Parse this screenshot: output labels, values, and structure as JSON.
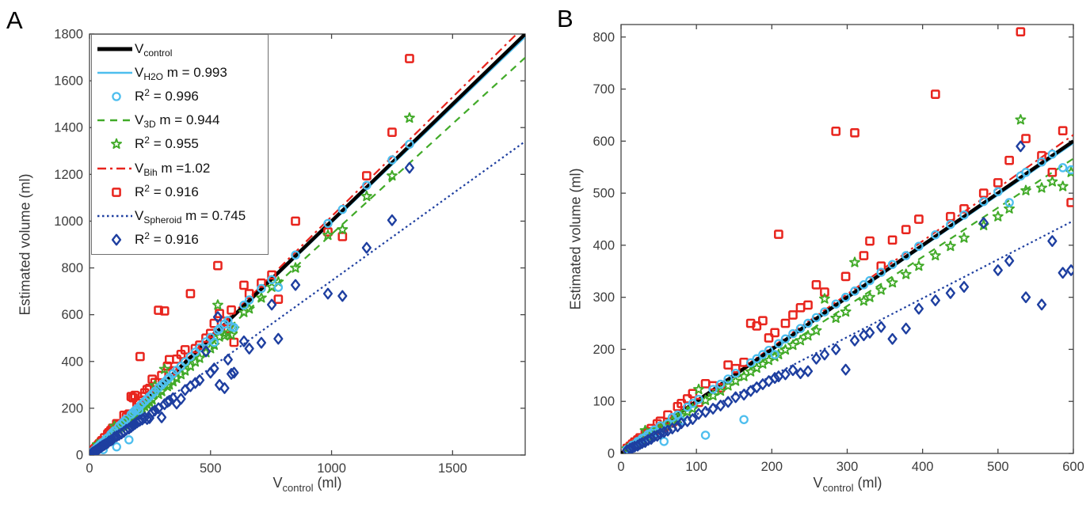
{
  "figure": {
    "panel_a_label": "A",
    "panel_b_label": "B",
    "x_axis_label": {
      "main": "V",
      "sub": "control",
      "rest": " (ml)"
    },
    "y_axis_label": "Estimated volume (ml)"
  },
  "colors": {
    "control": "#000000",
    "h2o": "#4DBEEE",
    "v3d": "#41AA28",
    "bih": "#E8241D",
    "spheroid": "#1E3FA0",
    "axis": "#454545",
    "tick_text": "#3d3d3d",
    "background": "#ffffff"
  },
  "legend": {
    "entries": [
      {
        "series": "control",
        "swatch": "line",
        "main": "V",
        "sub": "control",
        "sup": "",
        "rest": ""
      },
      {
        "series": "h2o",
        "swatch": "line",
        "main": "V",
        "sub": "H2O",
        "sup": "",
        "rest": " m = 0.993"
      },
      {
        "series": "h2o",
        "swatch": "marker",
        "main": "R",
        "sub": "",
        "sup": "2",
        "rest": " = 0.996"
      },
      {
        "series": "v3d",
        "swatch": "line",
        "main": "V",
        "sub": "3D",
        "sup": "",
        "rest": " m = 0.944"
      },
      {
        "series": "v3d",
        "swatch": "marker",
        "main": "R",
        "sub": "",
        "sup": "2",
        "rest": " = 0.955"
      },
      {
        "series": "bih",
        "swatch": "line",
        "main": "V",
        "sub": "Bih",
        "sup": "",
        "rest": " m =1.02"
      },
      {
        "series": "bih",
        "swatch": "marker",
        "main": "R",
        "sub": "",
        "sup": "2",
        "rest": " = 0.916"
      },
      {
        "series": "spheroid",
        "swatch": "line",
        "main": "V",
        "sub": "Spheroid",
        "sup": "",
        "rest": " m = 0.745"
      },
      {
        "series": "spheroid",
        "swatch": "marker",
        "main": "R",
        "sub": "",
        "sup": "2",
        "rest": " = 0.916"
      }
    ]
  },
  "chart_data": {
    "type": "scatter",
    "title": "",
    "xlabel": "V_control (ml)",
    "ylabel": "Estimated volume (ml)",
    "grid": false,
    "legend_position": "top-left of panel A",
    "panels": [
      {
        "label": "A",
        "xlim": [
          0,
          1800
        ],
        "ylim": [
          0,
          1800
        ],
        "xticks": [
          0,
          500,
          1000,
          1500
        ],
        "yticks": [
          0,
          200,
          400,
          600,
          800,
          1000,
          1200,
          1400,
          1600,
          1800
        ]
      },
      {
        "label": "B",
        "xlim": [
          0,
          600
        ],
        "ylim": [
          0,
          824
        ],
        "xticks": [
          0,
          100,
          200,
          300,
          400,
          500,
          600
        ],
        "yticks": [
          0,
          100,
          200,
          300,
          400,
          500,
          600,
          700,
          800
        ]
      }
    ],
    "series": [
      {
        "id": "control",
        "name": "V_control",
        "slope": 1.0,
        "r2": null,
        "line": "solid",
        "marker": "none"
      },
      {
        "id": "h2o",
        "name": "V_H2O",
        "slope": 0.993,
        "r2": 0.996,
        "line": "solid",
        "marker": "circle"
      },
      {
        "id": "v3d",
        "name": "V_3D",
        "slope": 0.944,
        "r2": 0.955,
        "line": "dashed",
        "marker": "star"
      },
      {
        "id": "bih",
        "name": "V_Bih",
        "slope": 1.02,
        "r2": 0.916,
        "line": "dashdot",
        "marker": "square"
      },
      {
        "id": "spheroid",
        "name": "V_Spheroid",
        "slope": 0.745,
        "r2": 0.916,
        "line": "dotted",
        "marker": "diamond"
      }
    ],
    "points_format": [
      "control",
      "h2o",
      "v3d",
      "bih",
      "spheroid"
    ],
    "points": [
      [
        8,
        8,
        9,
        10,
        6
      ],
      [
        12,
        11,
        12,
        14,
        9
      ],
      [
        15,
        16,
        14,
        18,
        11
      ],
      [
        18,
        17,
        16,
        22,
        13
      ],
      [
        22,
        23,
        20,
        26,
        15
      ],
      [
        25,
        24,
        23,
        30,
        18
      ],
      [
        28,
        29,
        26,
        25,
        20
      ],
      [
        32,
        31,
        44,
        38,
        22
      ],
      [
        36,
        37,
        33,
        42,
        26
      ],
      [
        40,
        39,
        36,
        48,
        28
      ],
      [
        44,
        45,
        41,
        40,
        33
      ],
      [
        48,
        40,
        45,
        57,
        34
      ],
      [
        52,
        53,
        48,
        62,
        38
      ],
      [
        57,
        23,
        52,
        50,
        41
      ],
      [
        62,
        57,
        57,
        74,
        44
      ],
      [
        68,
        69,
        62,
        60,
        48
      ],
      [
        75,
        74,
        68,
        90,
        52
      ],
      [
        80,
        63,
        73,
        96,
        58
      ],
      [
        88,
        89,
        80,
        105,
        62
      ],
      [
        95,
        96,
        86,
        115,
        66
      ],
      [
        103,
        104,
        123,
        98,
        76
      ],
      [
        112,
        35,
        102,
        134,
        80
      ],
      [
        122,
        123,
        111,
        130,
        86
      ],
      [
        132,
        133,
        120,
        126,
        92
      ],
      [
        142,
        143,
        130,
        170,
        99
      ],
      [
        152,
        154,
        139,
        163,
        108
      ],
      [
        163,
        65,
        148,
        175,
        113
      ],
      [
        172,
        174,
        157,
        250,
        120
      ],
      [
        180,
        182,
        164,
        245,
        127
      ],
      [
        188,
        190,
        172,
        255,
        133
      ],
      [
        196,
        198,
        179,
        222,
        139
      ],
      [
        204,
        190,
        186,
        232,
        145
      ],
      [
        209,
        211,
        190,
        421,
        148
      ],
      [
        218,
        220,
        199,
        250,
        152
      ],
      [
        228,
        230,
        208,
        266,
        160
      ],
      [
        238,
        240,
        217,
        280,
        154
      ],
      [
        248,
        250,
        226,
        285,
        158
      ],
      [
        259,
        261,
        236,
        324,
        182
      ],
      [
        270,
        272,
        297,
        310,
        190
      ],
      [
        285,
        287,
        260,
        619,
        200
      ],
      [
        298,
        300,
        272,
        340,
        161
      ],
      [
        310,
        312,
        367,
        616,
        217
      ],
      [
        322,
        324,
        293,
        380,
        227
      ],
      [
        330,
        332,
        300,
        408,
        232
      ],
      [
        345,
        348,
        314,
        360,
        243
      ],
      [
        360,
        363,
        328,
        410,
        220
      ],
      [
        378,
        380,
        344,
        430,
        240
      ],
      [
        395,
        398,
        360,
        450,
        278
      ],
      [
        417,
        420,
        380,
        690,
        294
      ],
      [
        437,
        440,
        398,
        455,
        308
      ],
      [
        455,
        458,
        414,
        470,
        320
      ],
      [
        481,
        484,
        438,
        500,
        443
      ],
      [
        500,
        503,
        455,
        520,
        352
      ],
      [
        515,
        482,
        470,
        563,
        370
      ],
      [
        530,
        533,
        641,
        810,
        590
      ],
      [
        537,
        540,
        505,
        605,
        300
      ],
      [
        558,
        560,
        510,
        572,
        286
      ],
      [
        572,
        575,
        522,
        540,
        408
      ],
      [
        586,
        549,
        513,
        620,
        347
      ],
      [
        597,
        545,
        540,
        482,
        352
      ],
      [
        638,
        641,
        610,
        726,
        486
      ],
      [
        660,
        663,
        625,
        690,
        455
      ],
      [
        710,
        712,
        672,
        735,
        480
      ],
      [
        753,
        750,
        718,
        770,
        643
      ],
      [
        780,
        717,
        740,
        666,
        497
      ],
      [
        851,
        855,
        800,
        1000,
        727
      ],
      [
        985,
        990,
        940,
        954,
        690
      ],
      [
        1045,
        1050,
        964,
        934,
        680
      ],
      [
        1145,
        1153,
        1106,
        1194,
        886
      ],
      [
        1250,
        1262,
        1194,
        1380,
        1004
      ],
      [
        1322,
        1329,
        1441,
        1695,
        1228
      ]
    ]
  }
}
